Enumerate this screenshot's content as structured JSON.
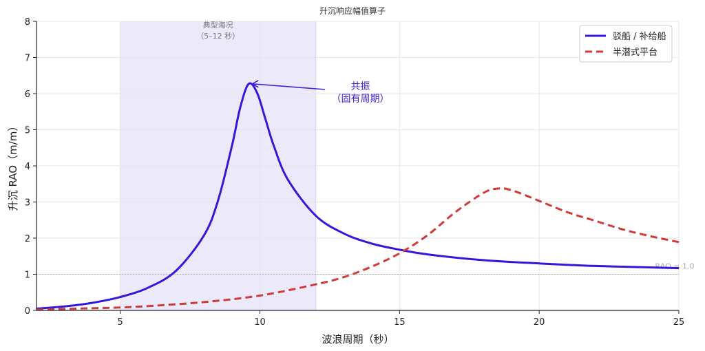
{
  "chart_data": {
    "type": "line",
    "title": "升沉响应幅值算子",
    "xlabel": "波浪周期（秒）",
    "ylabel": "升沉 RAO（m/m）",
    "xlim": [
      2,
      25
    ],
    "ylim": [
      0,
      8
    ],
    "xticks": [
      5,
      10,
      15,
      20,
      25
    ],
    "yticks": [
      0,
      1,
      2,
      3,
      4,
      5,
      6,
      7,
      8
    ],
    "grid": true,
    "legend_position": "upper right",
    "series": [
      {
        "name": "驳船 / 补给船",
        "color": "#3418d9",
        "style": "solid",
        "x": [
          2,
          3,
          4,
          5,
          6,
          7,
          8,
          8.5,
          9,
          9.3,
          9.6,
          9.9,
          10.2,
          10.5,
          11,
          12,
          13,
          14,
          15,
          16,
          18,
          20,
          22,
          25
        ],
        "y": [
          0.05,
          0.11,
          0.21,
          0.37,
          0.63,
          1.1,
          2.08,
          3.04,
          4.56,
          5.63,
          6.27,
          6.02,
          5.29,
          4.55,
          3.62,
          2.62,
          2.13,
          1.85,
          1.68,
          1.55,
          1.39,
          1.3,
          1.23,
          1.17
        ]
      },
      {
        "name": "半潜式平台",
        "color": "#d03a3a",
        "style": "dashed",
        "x": [
          2,
          4,
          5,
          6,
          8,
          10,
          12,
          13,
          14,
          15,
          16,
          17,
          18,
          18.5,
          19,
          20,
          21,
          22,
          23,
          24,
          25
        ],
        "y": [
          0.02,
          0.06,
          0.08,
          0.12,
          0.23,
          0.41,
          0.72,
          0.92,
          1.21,
          1.58,
          2.08,
          2.72,
          3.25,
          3.37,
          3.33,
          3.03,
          2.72,
          2.48,
          2.24,
          2.05,
          1.89
        ]
      }
    ],
    "shaded_region": {
      "x": [
        5,
        12
      ],
      "label_line1": "典型海况",
      "label_line2": "（5–12 秒）",
      "color": "#ece9fb"
    },
    "reference_line": {
      "y": 1.0,
      "label": "RAO = 1.0"
    },
    "annotation": {
      "text_line1": "共振",
      "text_line2": "（固有周期）",
      "point": [
        9.6,
        6.27
      ],
      "text_pos": [
        13.6,
        6.0
      ],
      "color": "#3a22d6"
    }
  }
}
